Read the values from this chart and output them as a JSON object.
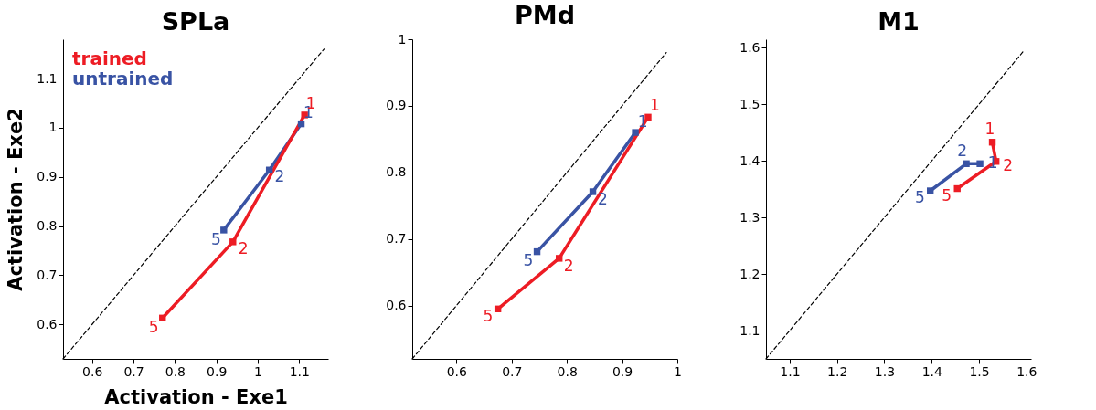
{
  "chart_data": [
    {
      "type": "line",
      "title": "SPLa",
      "xlabel": "Activation - Exe1",
      "ylabel": "Activation - Exe2",
      "xlim": [
        0.53,
        1.17
      ],
      "ylim": [
        0.53,
        1.18
      ],
      "xticks": [
        0.6,
        0.7,
        0.8,
        0.9,
        1,
        1.1
      ],
      "yticks": [
        0.6,
        0.7,
        0.8,
        0.9,
        1,
        1.1
      ],
      "marker": "square",
      "series": [
        {
          "type": "line",
          "color": "#000000",
          "line_style": "dashed",
          "marker": "none",
          "x": [
            0.53,
            1.16
          ],
          "values": [
            0.53,
            1.16
          ]
        },
        {
          "name": "untrained",
          "color": "#3953a4",
          "x": [
            1.105,
            1.028,
            0.918
          ],
          "values": [
            1.008,
            0.914,
            0.792
          ]
        },
        {
          "name": "trained",
          "color": "#ed1c24",
          "x": [
            1.113,
            0.94,
            0.77
          ],
          "values": [
            1.026,
            0.768,
            0.613
          ]
        }
      ],
      "annotations": [
        {
          "text": "1",
          "x": 1.105,
          "y": 1.008
        },
        {
          "text": "2",
          "x": 1.028,
          "y": 0.914
        },
        {
          "text": "5",
          "x": 0.918,
          "y": 0.792
        },
        {
          "text": "1",
          "x": 1.113,
          "y": 1.026
        },
        {
          "text": "2",
          "x": 0.94,
          "y": 0.768
        },
        {
          "text": "5",
          "x": 0.77,
          "y": 0.613
        }
      ]
    },
    {
      "type": "line",
      "title": "PMd",
      "xlim": [
        0.52,
        1
      ],
      "ylim": [
        0.52,
        1
      ],
      "xticks": [
        0.6,
        0.7,
        0.8,
        0.9,
        1
      ],
      "yticks": [
        0.6,
        0.7,
        0.8,
        0.9,
        1
      ],
      "marker": "square",
      "series": [
        {
          "type": "line",
          "color": "#000000",
          "line_style": "dashed",
          "marker": "none",
          "x": [
            0.52,
            0.98
          ],
          "values": [
            0.52,
            0.98
          ]
        },
        {
          "color": "#3953a4",
          "x": [
            0.924,
            0.847,
            0.746
          ],
          "values": [
            0.86,
            0.771,
            0.681
          ]
        },
        {
          "color": "#ed1c24",
          "x": [
            0.947,
            0.786,
            0.675
          ],
          "values": [
            0.883,
            0.671,
            0.595
          ]
        }
      ],
      "annotations": [
        {
          "text": "1",
          "x": 0.924,
          "y": 0.86
        },
        {
          "text": "2",
          "x": 0.847,
          "y": 0.771
        },
        {
          "text": "5",
          "x": 0.746,
          "y": 0.681
        },
        {
          "text": "1",
          "x": 0.947,
          "y": 0.883
        },
        {
          "text": "2",
          "x": 0.786,
          "y": 0.671
        },
        {
          "text": "5",
          "x": 0.675,
          "y": 0.595
        }
      ]
    },
    {
      "type": "line",
      "title": "M1",
      "xlim": [
        1.05,
        1.61
      ],
      "ylim": [
        1.05,
        1.615
      ],
      "xticks": [
        1.1,
        1.2,
        1.3,
        1.4,
        1.5,
        1.6
      ],
      "yticks": [
        1.1,
        1.2,
        1.3,
        1.4,
        1.5,
        1.6
      ],
      "marker": "square",
      "series": [
        {
          "type": "line",
          "color": "#000000",
          "line_style": "dashed",
          "marker": "none",
          "x": [
            1.05,
            1.595
          ],
          "values": [
            1.05,
            1.595
          ]
        },
        {
          "color": "#3953a4",
          "x": [
            1.502,
            1.473,
            1.397
          ],
          "values": [
            1.395,
            1.395,
            1.347
          ]
        },
        {
          "color": "#ed1c24",
          "x": [
            1.528,
            1.536,
            1.454
          ],
          "values": [
            1.433,
            1.399,
            1.351
          ]
        }
      ],
      "annotations": [
        {
          "text": "1",
          "x": 1.502,
          "y": 1.395
        },
        {
          "text": "2",
          "x": 1.473,
          "y": 1.395
        },
        {
          "text": "5",
          "x": 1.397,
          "y": 1.347
        },
        {
          "text": "1",
          "x": 1.528,
          "y": 1.433
        },
        {
          "text": "2",
          "x": 1.536,
          "y": 1.399
        },
        {
          "text": "5",
          "x": 1.454,
          "y": 1.351
        }
      ]
    }
  ]
}
